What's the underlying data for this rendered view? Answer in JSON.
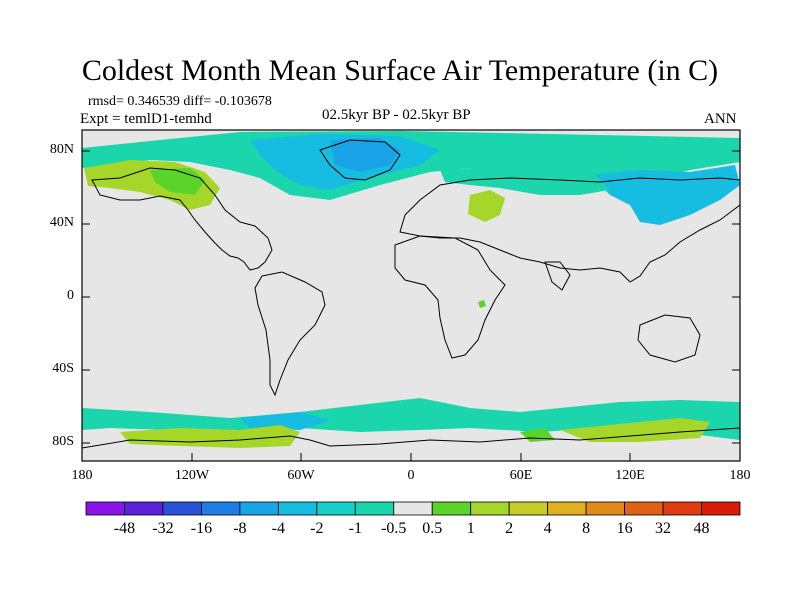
{
  "title": "Coldest Month Mean Surface Air Temperature (in C)",
  "stats": "rmsd= 0.346539 diff= -0.103678",
  "experiment": "Expt = temlD1-temhd",
  "period": "02.5kyr BP - 02.5kyr BP",
  "season": "ANN",
  "lat_labels": [
    "80N",
    "40N",
    "0",
    "40S",
    "80S"
  ],
  "lon_labels": [
    "180",
    "120W",
    "60W",
    "0",
    "60E",
    "120E",
    "180"
  ],
  "colorbar": {
    "labels": [
      "-48",
      "-32",
      "-16",
      "-8",
      "-4",
      "-2",
      "-1",
      "-0.5",
      "0.5",
      "1",
      "2",
      "4",
      "8",
      "16",
      "32",
      "48"
    ],
    "colors": [
      "#8a14e8",
      "#5a22d8",
      "#2a52d8",
      "#1d7fe6",
      "#1aa3e6",
      "#16bde0",
      "#17cfc8",
      "#1bd6ad",
      "#e6e6e6",
      "#5ad42a",
      "#a6d62a",
      "#c8cc28",
      "#e0b020",
      "#e08a18",
      "#e06014",
      "#e03a10",
      "#d81c08"
    ]
  },
  "anomaly_colors": {
    "background": "#e6e6e6",
    "cool_slight": "#1bd6ad",
    "cool_moderate": "#16bde0",
    "cool_strong": "#1aa3e6",
    "warm_slight": "#5ad42a",
    "warm_moderate": "#a6d62a"
  }
}
